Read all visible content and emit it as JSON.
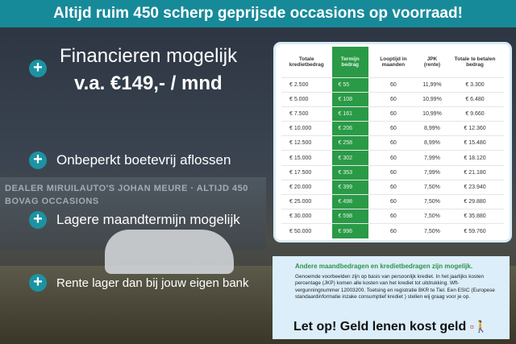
{
  "banner": "Altijd ruim 450 scherp geprijsde occasions op voorraad!",
  "bullets": [
    {
      "title": "Financieren mogelijk",
      "subtitle": "v.a. €149,- / mnd"
    },
    {
      "title": "Onbeperkt boetevrij aflossen"
    },
    {
      "title": "Lagere maandtermijn mogelijk"
    },
    {
      "title": "Rente lager dan bij jouw eigen bank"
    }
  ],
  "background_sign": "DEALER MIRUILAUTO'S JOHAN MEURE · ALTIJD 450 BOVAG OCCASIONS",
  "table": {
    "headers": [
      "Totale kredietbedrag",
      "Termijn bedrag",
      "Looptijd in maanden",
      "JPK (rente)",
      "Totale te betalen bedrag"
    ],
    "rows": [
      [
        "€ 2.500",
        "€ 55",
        "60",
        "11,99%",
        "€ 3.300"
      ],
      [
        "€ 5.000",
        "€ 108",
        "60",
        "10,99%",
        "€ 6.480"
      ],
      [
        "€ 7.500",
        "€ 161",
        "60",
        "10,99%",
        "€ 9.660"
      ],
      [
        "€ 10.000",
        "€ 206",
        "60",
        "8,99%",
        "€ 12.360"
      ],
      [
        "€ 12.500",
        "€ 258",
        "60",
        "8,99%",
        "€ 15.480"
      ],
      [
        "€ 15.000",
        "€ 302",
        "60",
        "7,99%",
        "€ 18.120"
      ],
      [
        "€ 17.500",
        "€ 353",
        "60",
        "7,99%",
        "€ 21.180"
      ],
      [
        "€ 20.000",
        "€ 399",
        "60",
        "7,50%",
        "€ 23.940"
      ],
      [
        "€ 25.000",
        "€ 498",
        "60",
        "7,50%",
        "€ 29.880"
      ],
      [
        "€ 30.000",
        "€ 598",
        "60",
        "7,50%",
        "€ 35.880"
      ],
      [
        "€ 50.000",
        "€ 996",
        "60",
        "7,50%",
        "€ 59.760"
      ]
    ]
  },
  "note": {
    "heading": "Andere maandbedragen en kredietbedragen zijn mogelijk.",
    "body": "Genoemde voorbeelden zijn op basis van persoonlijk krediet. In het jaarlijks kosten percentage (JKP) komen alle kosten van het krediet tot uitdrukking. Wft-vergunningnummer 12003200. Toetsing en registratie BKR te Tiel. Een ESIC (Europese standaardinformatie inzake consumptief krediet ) stellen wij graag voor je op.",
    "warning": "Let op! Geld lenen kost geld"
  },
  "colors": {
    "banner": "#178a99",
    "accent_green": "#2a9a46",
    "plus_icon": "#1b93a3"
  }
}
